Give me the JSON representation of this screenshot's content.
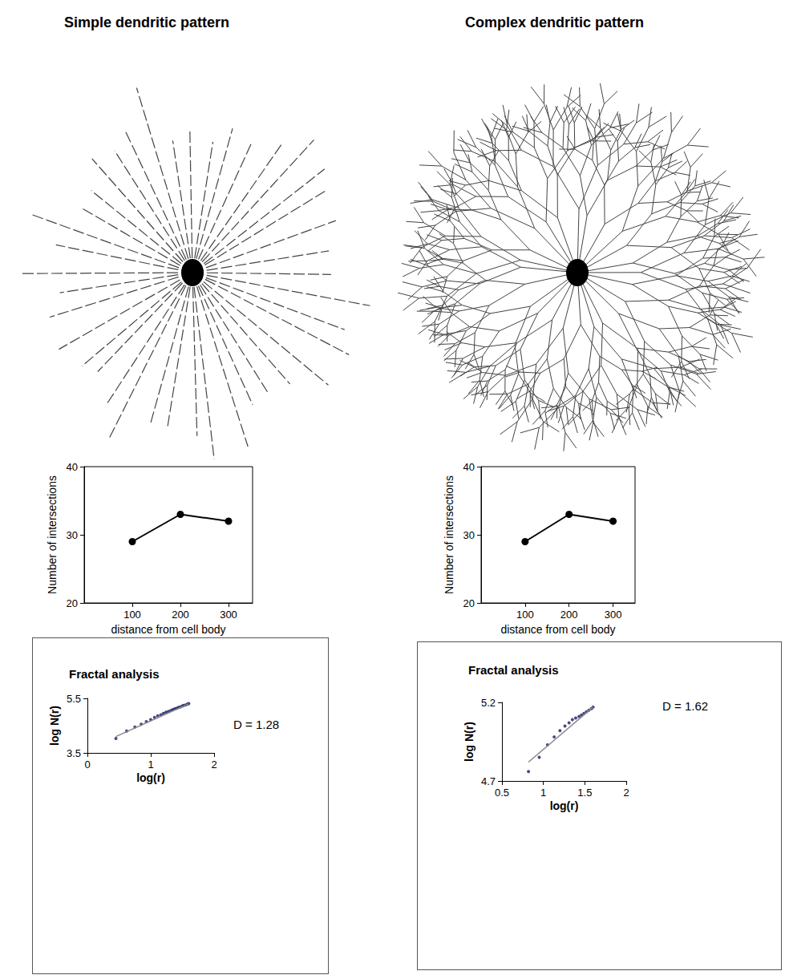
{
  "headings": [
    "Simple dendritic pattern",
    "Complex dendritic pattern"
  ],
  "chart_data": [
    {
      "type": "line",
      "x": [
        100,
        200,
        300
      ],
      "values": [
        29,
        33,
        32
      ],
      "color": "#000000",
      "marker": "circle",
      "xlim": [
        0,
        350
      ],
      "xticks": [
        100,
        200,
        300
      ],
      "ylim": [
        20,
        40
      ],
      "yticks": [
        20,
        30,
        40
      ],
      "x_label": "distance from cell body",
      "y_label": "Number of intersections"
    },
    {
      "type": "line",
      "x": [
        100,
        200,
        300
      ],
      "values": [
        29,
        33,
        32
      ],
      "color": "#000000",
      "marker": "circle",
      "xlim": [
        0,
        350
      ],
      "xticks": [
        100,
        200,
        300
      ],
      "ylim": [
        20,
        40
      ],
      "yticks": [
        20,
        30,
        40
      ],
      "x_label": "distance from cell body",
      "y_label": "Number of intersections"
    },
    {
      "type": "scatter",
      "title": "Fractal analysis",
      "annotation": "D = 1.28",
      "xlim": [
        0,
        2
      ],
      "xticks": [
        0,
        1,
        2
      ],
      "ylim": [
        3.5,
        5.5
      ],
      "yticks": [
        3.5,
        5.5
      ],
      "x_label": "log(r)",
      "y_label": "log N(r)",
      "series": [
        {
          "type": "scatter",
          "marker": "circle",
          "color": "#1a1a66",
          "x": [
            0.45,
            0.62,
            0.75,
            0.85,
            0.93,
            1.0,
            1.06,
            1.11,
            1.16,
            1.2,
            1.24,
            1.28,
            1.32,
            1.35,
            1.38,
            1.41,
            1.44,
            1.47,
            1.5,
            1.52,
            1.55,
            1.58,
            1.6
          ],
          "values": [
            4.03,
            4.3,
            4.45,
            4.55,
            4.65,
            4.72,
            4.8,
            4.86,
            4.9,
            4.95,
            4.99,
            5.02,
            5.06,
            5.09,
            5.12,
            5.14,
            5.17,
            5.19,
            5.22,
            5.24,
            5.26,
            5.29,
            5.31
          ]
        },
        {
          "type": "line",
          "color": "#888888",
          "x": [
            0.45,
            1.6
          ],
          "values": [
            4.1,
            5.3
          ]
        }
      ]
    },
    {
      "type": "scatter",
      "title": "Fractal analysis",
      "annotation": "D = 1.62",
      "xlim": [
        0.5,
        2
      ],
      "xticks": [
        0.5,
        1,
        1.5,
        2
      ],
      "ylim": [
        4.7,
        5.2
      ],
      "yticks": [
        4.7,
        5.2
      ],
      "x_label": "log(r)",
      "y_label": "log N(r)",
      "series": [
        {
          "type": "scatter",
          "marker": "circle",
          "color": "#1a1a66",
          "x": [
            0.82,
            0.95,
            1.05,
            1.13,
            1.2,
            1.26,
            1.31,
            1.35,
            1.39,
            1.43,
            1.46,
            1.49,
            1.52,
            1.55,
            1.58,
            1.6
          ],
          "values": [
            4.76,
            4.85,
            4.93,
            4.98,
            5.02,
            5.05,
            5.07,
            5.09,
            5.1,
            5.11,
            5.12,
            5.13,
            5.14,
            5.15,
            5.16,
            5.17
          ]
        },
        {
          "type": "line",
          "color": "#888888",
          "x": [
            0.82,
            1.6
          ],
          "values": [
            4.82,
            5.17
          ]
        }
      ]
    }
  ]
}
